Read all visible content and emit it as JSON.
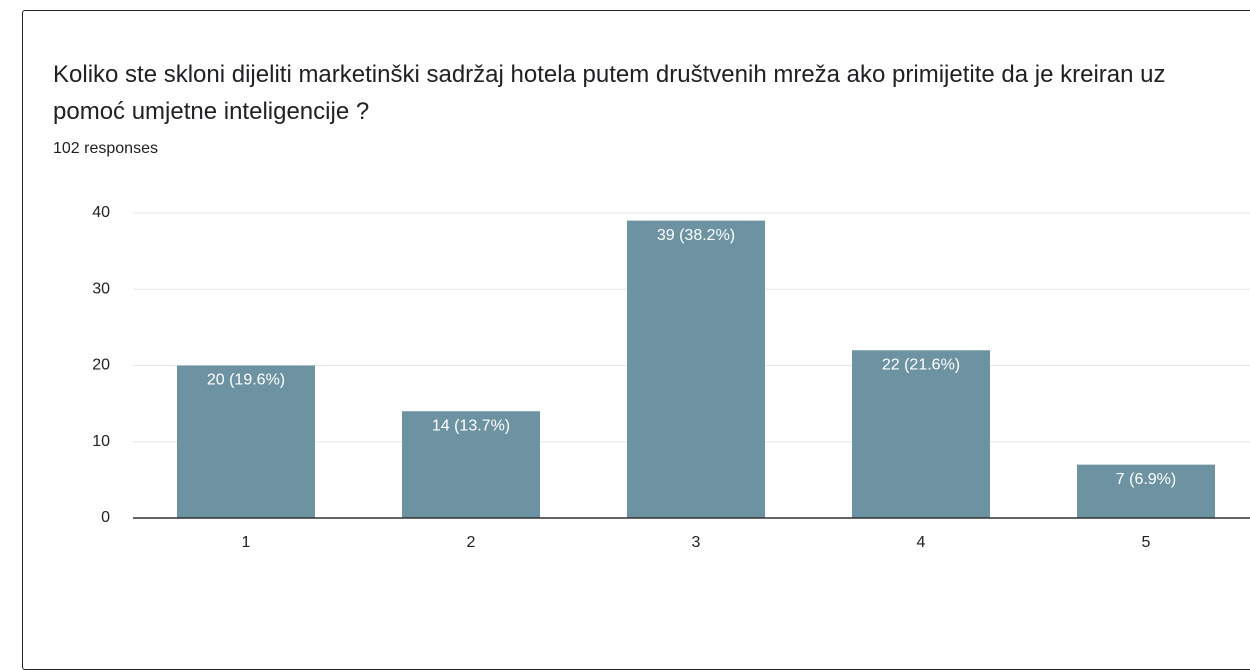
{
  "chart_data": {
    "type": "bar",
    "title": "Koliko ste skloni dijeliti marketinški sadržaj hotela putem društvenih mreža ako primijetite da je kreiran uz pomoć umjetne inteligencije ?",
    "subtitle": "102 responses",
    "categories": [
      "1",
      "2",
      "3",
      "4",
      "5"
    ],
    "values": [
      20,
      14,
      39,
      22,
      7
    ],
    "value_labels": [
      "20 (19.6%)",
      "14 (13.7%)",
      "39 (38.2%)",
      "22 (21.6%)",
      "7 (6.9%)"
    ],
    "color": "#6d93a3",
    "ylim": [
      0,
      40
    ],
    "yticks": [
      0,
      10,
      20,
      30,
      40
    ],
    "grid": true
  }
}
